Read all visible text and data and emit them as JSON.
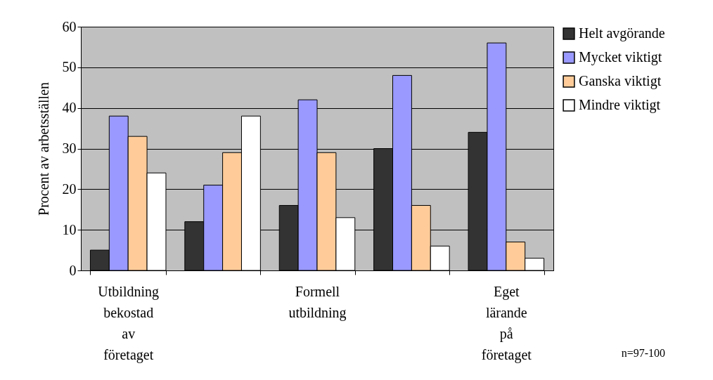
{
  "chart_data": {
    "type": "bar",
    "ylabel": "Procent av arbetsställen",
    "categories": [
      "Utbildning bekostad av företaget",
      null,
      "Formell utbildning",
      null,
      "Eget lärande på företaget"
    ],
    "series": [
      {
        "name": "Helt avgörande",
        "color": "#333333",
        "values": [
          5,
          12,
          16,
          30,
          34
        ]
      },
      {
        "name": "Mycket viktigt",
        "color": "#9999ff",
        "values": [
          38,
          21,
          42,
          48,
          56
        ]
      },
      {
        "name": "Ganska viktigt",
        "color": "#ffcc99",
        "values": [
          33,
          29,
          29,
          16,
          7
        ]
      },
      {
        "name": "Mindre viktigt",
        "color": "#ffffff",
        "values": [
          24,
          38,
          13,
          6,
          3
        ]
      }
    ],
    "ylim": [
      0,
      60
    ],
    "yticks": [
      0,
      10,
      20,
      30,
      40,
      50,
      60
    ],
    "grid": "y",
    "legend": "right",
    "annotations": [
      "n=97-100"
    ]
  }
}
